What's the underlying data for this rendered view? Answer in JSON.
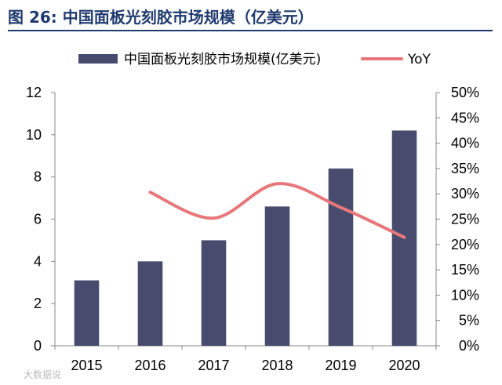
{
  "figure": {
    "title": "图 26:  中国面板光刻胶市场规模（亿美元）"
  },
  "watermark": "大数据说",
  "colors": {
    "bar": "#474c6e",
    "line": "#e8767a",
    "title": "#1f3a6e"
  },
  "chart_data": {
    "type": "bar+line",
    "categories": [
      "2015",
      "2016",
      "2017",
      "2018",
      "2019",
      "2020"
    ],
    "series": [
      {
        "name": "中国面板光刻胶市场规模(亿美元)",
        "type": "bar",
        "axis": "left",
        "values": [
          3.1,
          4.0,
          5.0,
          6.6,
          8.4,
          10.2
        ]
      },
      {
        "name": "YoY",
        "type": "line",
        "axis": "right",
        "values": [
          null,
          30.3,
          25.2,
          32.0,
          27.3,
          21.4
        ]
      }
    ],
    "left_axis": {
      "min": 0,
      "max": 12,
      "ticks": [
        "0",
        "2",
        "4",
        "6",
        "8",
        "10",
        "12"
      ]
    },
    "right_axis": {
      "min": 0,
      "max": 50,
      "ticks": [
        "0%",
        "5%",
        "10%",
        "15%",
        "20%",
        "25%",
        "30%",
        "35%",
        "40%",
        "45%",
        "50%"
      ]
    },
    "legend_position": "top"
  }
}
